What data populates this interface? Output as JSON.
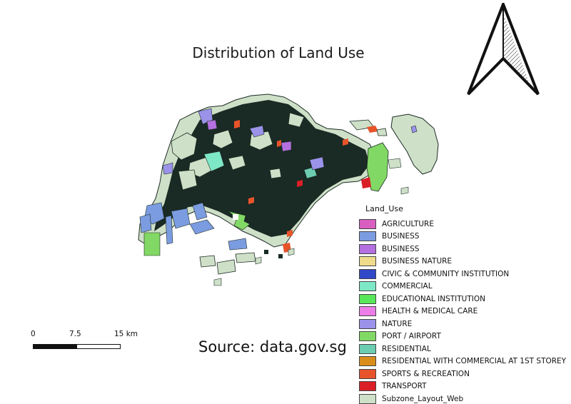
{
  "map": {
    "title": "Distribution of Land Use",
    "source_text": "Source: data.gov.sg",
    "colors": {
      "base": "#cfe0c8",
      "outline": "#1c2b25",
      "dense_fill": "#1a2a24"
    }
  },
  "scale_bar": {
    "labels": [
      "0",
      "7.5",
      "15 km"
    ]
  },
  "legend": {
    "title": "Land_Use",
    "items": [
      {
        "label": "AGRICULTURE",
        "color": "#d85fbf"
      },
      {
        "label": "BUSINESS",
        "color": "#7b9ce0"
      },
      {
        "label": "BUSINESS",
        "color": "#b46fe0"
      },
      {
        "label": "BUSINESS NATURE",
        "color": "#eedc8c"
      },
      {
        "label": "CIVIC & COMMUNITY INSTITUTION",
        "color": "#3148c9"
      },
      {
        "label": "COMMERCIAL",
        "color": "#7ee8c6"
      },
      {
        "label": "EDUCATIONAL INSTITUTION",
        "color": "#58e75a"
      },
      {
        "label": "HEALTH & MEDICAL CARE",
        "color": "#ec7ce8"
      },
      {
        "label": "NATURE",
        "color": "#9b92ea"
      },
      {
        "label": "PORT / AIRPORT",
        "color": "#82d864"
      },
      {
        "label": "RESIDENTIAL",
        "color": "#6ccdb1"
      },
      {
        "label": "RESIDENTIAL WITH COMMERCIAL AT 1ST STOREY",
        "color": "#d98e1c"
      },
      {
        "label": "SPORTS & RECREATION",
        "color": "#e8542a"
      },
      {
        "label": "TRANSPORT",
        "color": "#db1f26"
      },
      {
        "label": "Subzone_Layout_Web",
        "color": "#cfe0c8"
      }
    ]
  }
}
